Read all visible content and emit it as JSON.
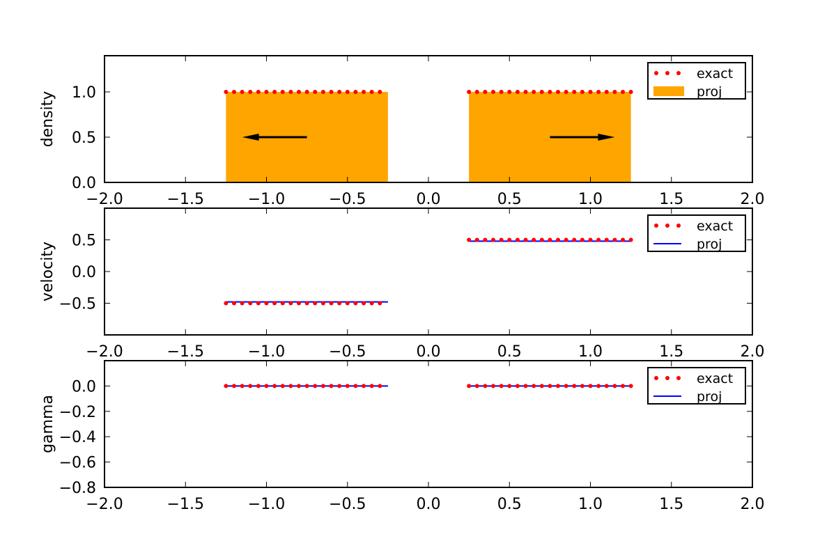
{
  "chart_data": [
    {
      "type": "area",
      "panel": "density",
      "ylabel": "density",
      "xlim": [
        -2.0,
        2.0
      ],
      "ylim": [
        0.0,
        1.4
      ],
      "xticks": [
        "−2.0",
        "−1.5",
        "−1.0",
        "−0.5",
        "0.0",
        "0.5",
        "1.0",
        "1.5",
        "2.0"
      ],
      "xtick_values": [
        -2.0,
        -1.5,
        -1.0,
        -0.5,
        0.0,
        0.5,
        1.0,
        1.5,
        2.0
      ],
      "yticks": [
        "0.0",
        "0.5",
        "1.0"
      ],
      "ytick_values": [
        0.0,
        0.5,
        1.0
      ],
      "legend": [
        "exact",
        "proj"
      ],
      "legend_position": "top-right",
      "series": [
        {
          "name": "exact",
          "style": "dots",
          "color": "#ff0000",
          "segments": [
            {
              "x_start": -1.25,
              "x_end": -0.3,
              "points": 20,
              "y": 1.0
            },
            {
              "x_start": 0.25,
              "x_end": 1.25,
              "points": 21,
              "y": 1.0
            }
          ]
        },
        {
          "name": "proj",
          "style": "fill",
          "color": "#ffa500",
          "segments": [
            {
              "x_start": -1.25,
              "x_end": -0.25,
              "y": 1.0
            },
            {
              "x_start": 0.25,
              "x_end": 1.25,
              "y": 1.0
            }
          ]
        }
      ],
      "annotations": [
        {
          "type": "arrow",
          "direction": "left",
          "x_from": -0.75,
          "x_to": -1.15,
          "y": 0.5
        },
        {
          "type": "arrow",
          "direction": "right",
          "x_from": 0.75,
          "x_to": 1.15,
          "y": 0.5
        }
      ]
    },
    {
      "type": "line",
      "panel": "velocity",
      "ylabel": "velocity",
      "xlim": [
        -2.0,
        2.0
      ],
      "ylim": [
        -1.0,
        1.0
      ],
      "xticks": [
        "−2.0",
        "−1.5",
        "−1.0",
        "−0.5",
        "0.0",
        "0.5",
        "1.0",
        "1.5",
        "2.0"
      ],
      "xtick_values": [
        -2.0,
        -1.5,
        -1.0,
        -0.5,
        0.0,
        0.5,
        1.0,
        1.5,
        2.0
      ],
      "yticks": [
        "−0.5",
        "0.0",
        "0.5"
      ],
      "ytick_values": [
        -0.5,
        0.0,
        0.5
      ],
      "legend": [
        "exact",
        "proj"
      ],
      "legend_position": "top-right",
      "series": [
        {
          "name": "exact",
          "style": "dots",
          "color": "#ff0000",
          "segments": [
            {
              "x_start": -1.25,
              "x_end": -0.3,
              "points": 20,
              "y": -0.5
            },
            {
              "x_start": 0.25,
              "x_end": 1.25,
              "points": 21,
              "y": 0.5
            }
          ]
        },
        {
          "name": "proj",
          "style": "line",
          "color": "#0000ff",
          "segments": [
            {
              "x_start": -1.25,
              "x_end": -0.25,
              "y": -0.48
            },
            {
              "x_start": 0.25,
              "x_end": 1.25,
              "y": 0.48
            }
          ]
        }
      ]
    },
    {
      "type": "line",
      "panel": "gamma",
      "ylabel": "gamma",
      "xlim": [
        -2.0,
        2.0
      ],
      "ylim": [
        -0.8,
        0.2
      ],
      "xticks": [
        "−2.0",
        "−1.5",
        "−1.0",
        "−0.5",
        "0.0",
        "0.5",
        "1.0",
        "1.5",
        "2.0"
      ],
      "xtick_values": [
        -2.0,
        -1.5,
        -1.0,
        -0.5,
        0.0,
        0.5,
        1.0,
        1.5,
        2.0
      ],
      "yticks": [
        "−0.8",
        "−0.6",
        "−0.4",
        "−0.2",
        "0.0"
      ],
      "ytick_values": [
        -0.8,
        -0.6,
        -0.4,
        -0.2,
        0.0
      ],
      "legend": [
        "exact",
        "proj"
      ],
      "legend_position": "top-right",
      "series": [
        {
          "name": "exact",
          "style": "dots",
          "color": "#ff0000",
          "segments": [
            {
              "x_start": -1.25,
              "x_end": -0.3,
              "points": 20,
              "y": 0.0
            },
            {
              "x_start": 0.25,
              "x_end": 1.25,
              "points": 21,
              "y": 0.0
            }
          ]
        },
        {
          "name": "proj",
          "style": "line",
          "color": "#0000ff",
          "segments": [
            {
              "x_start": -1.25,
              "x_end": -0.25,
              "y": 0.0
            },
            {
              "x_start": 0.25,
              "x_end": 1.25,
              "y": 0.0
            }
          ]
        }
      ]
    }
  ]
}
